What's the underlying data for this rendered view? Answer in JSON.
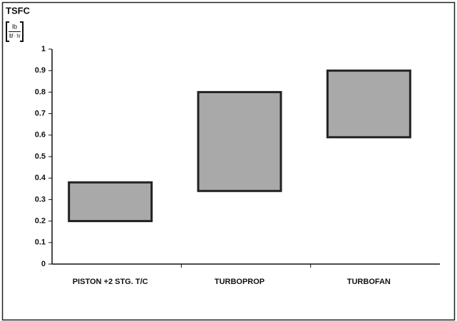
{
  "chart_data": {
    "type": "range-bar",
    "title": "TSFC",
    "unit": {
      "numerator": "lb",
      "denominator": "lbf · hr"
    },
    "categories": [
      "PISTON +2 STG. T/C",
      "TURBOPROP",
      "TURBOFAN"
    ],
    "low": [
      0.2,
      0.34,
      0.59
    ],
    "high": [
      0.38,
      0.8,
      0.9
    ],
    "color": "#a9a9a9",
    "edge_color": "#222222",
    "ylim": [
      0,
      1
    ],
    "yticks": [
      0,
      0.1,
      0.2,
      0.3,
      0.4,
      0.5,
      0.6,
      0.7,
      0.8,
      0.9,
      1
    ]
  }
}
